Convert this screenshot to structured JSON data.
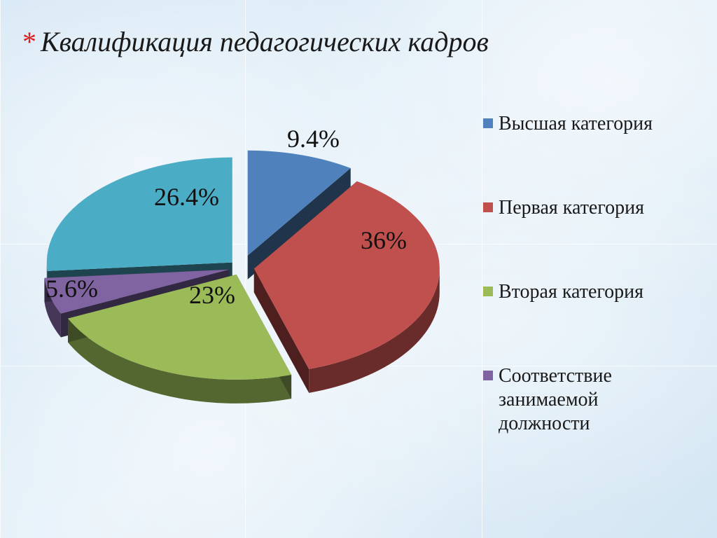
{
  "title": "Квалификация педагогических кадров",
  "title_bullet": "*",
  "chart_data": {
    "type": "pie",
    "title": "Квалификация педагогических кадров",
    "categories": [
      "Высшая категория",
      "Первая категория",
      "Вторая категория",
      "Соответствие занимаемой должности",
      ""
    ],
    "values": [
      9.4,
      36,
      23,
      5.6,
      26.4
    ],
    "labels": [
      "9.4%",
      "36%",
      "23%",
      "5.6%",
      "26.4%"
    ],
    "colors": [
      "#4f81bd",
      "#c0504d",
      "#9bbb59",
      "#8064a2",
      "#4bacc6"
    ],
    "exploded": true,
    "style": "3d",
    "legend_position": "right"
  }
}
